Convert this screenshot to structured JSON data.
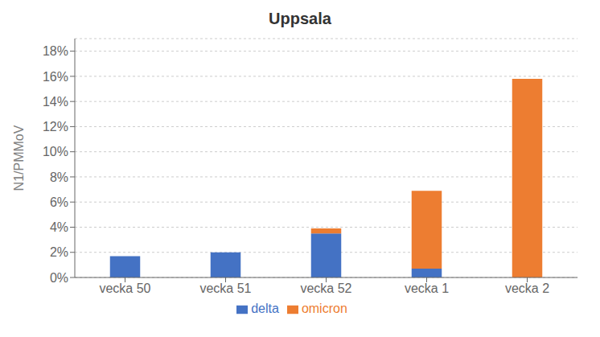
{
  "chart_data": {
    "type": "bar",
    "title": "Uppsala",
    "ylabel": "N1/PMMoV",
    "categories": [
      "vecka 50",
      "vecka 51",
      "vecka 52",
      "vecka 1",
      "vecka 2"
    ],
    "series": [
      {
        "name": "delta",
        "color": "#4472C4",
        "values": [
          0.017,
          0.02,
          0.035,
          0.007,
          0.0
        ]
      },
      {
        "name": "omicron",
        "color": "#ED7D31",
        "values": [
          0.0,
          0.0,
          0.004,
          0.062,
          0.158
        ]
      }
    ],
    "stacked": true,
    "ylim": [
      0,
      0.19
    ],
    "yticks": [
      {
        "value": 0.0,
        "label": "0%"
      },
      {
        "value": 0.02,
        "label": "2%"
      },
      {
        "value": 0.04,
        "label": "4%"
      },
      {
        "value": 0.06,
        "label": "6%"
      },
      {
        "value": 0.08,
        "label": "8%"
      },
      {
        "value": 0.1,
        "label": "10%"
      },
      {
        "value": 0.12,
        "label": "12%"
      },
      {
        "value": 0.14,
        "label": "14%"
      },
      {
        "value": 0.16,
        "label": "16%"
      },
      {
        "value": 0.18,
        "label": "18%"
      }
    ],
    "grid": true,
    "legend": "bottom"
  }
}
